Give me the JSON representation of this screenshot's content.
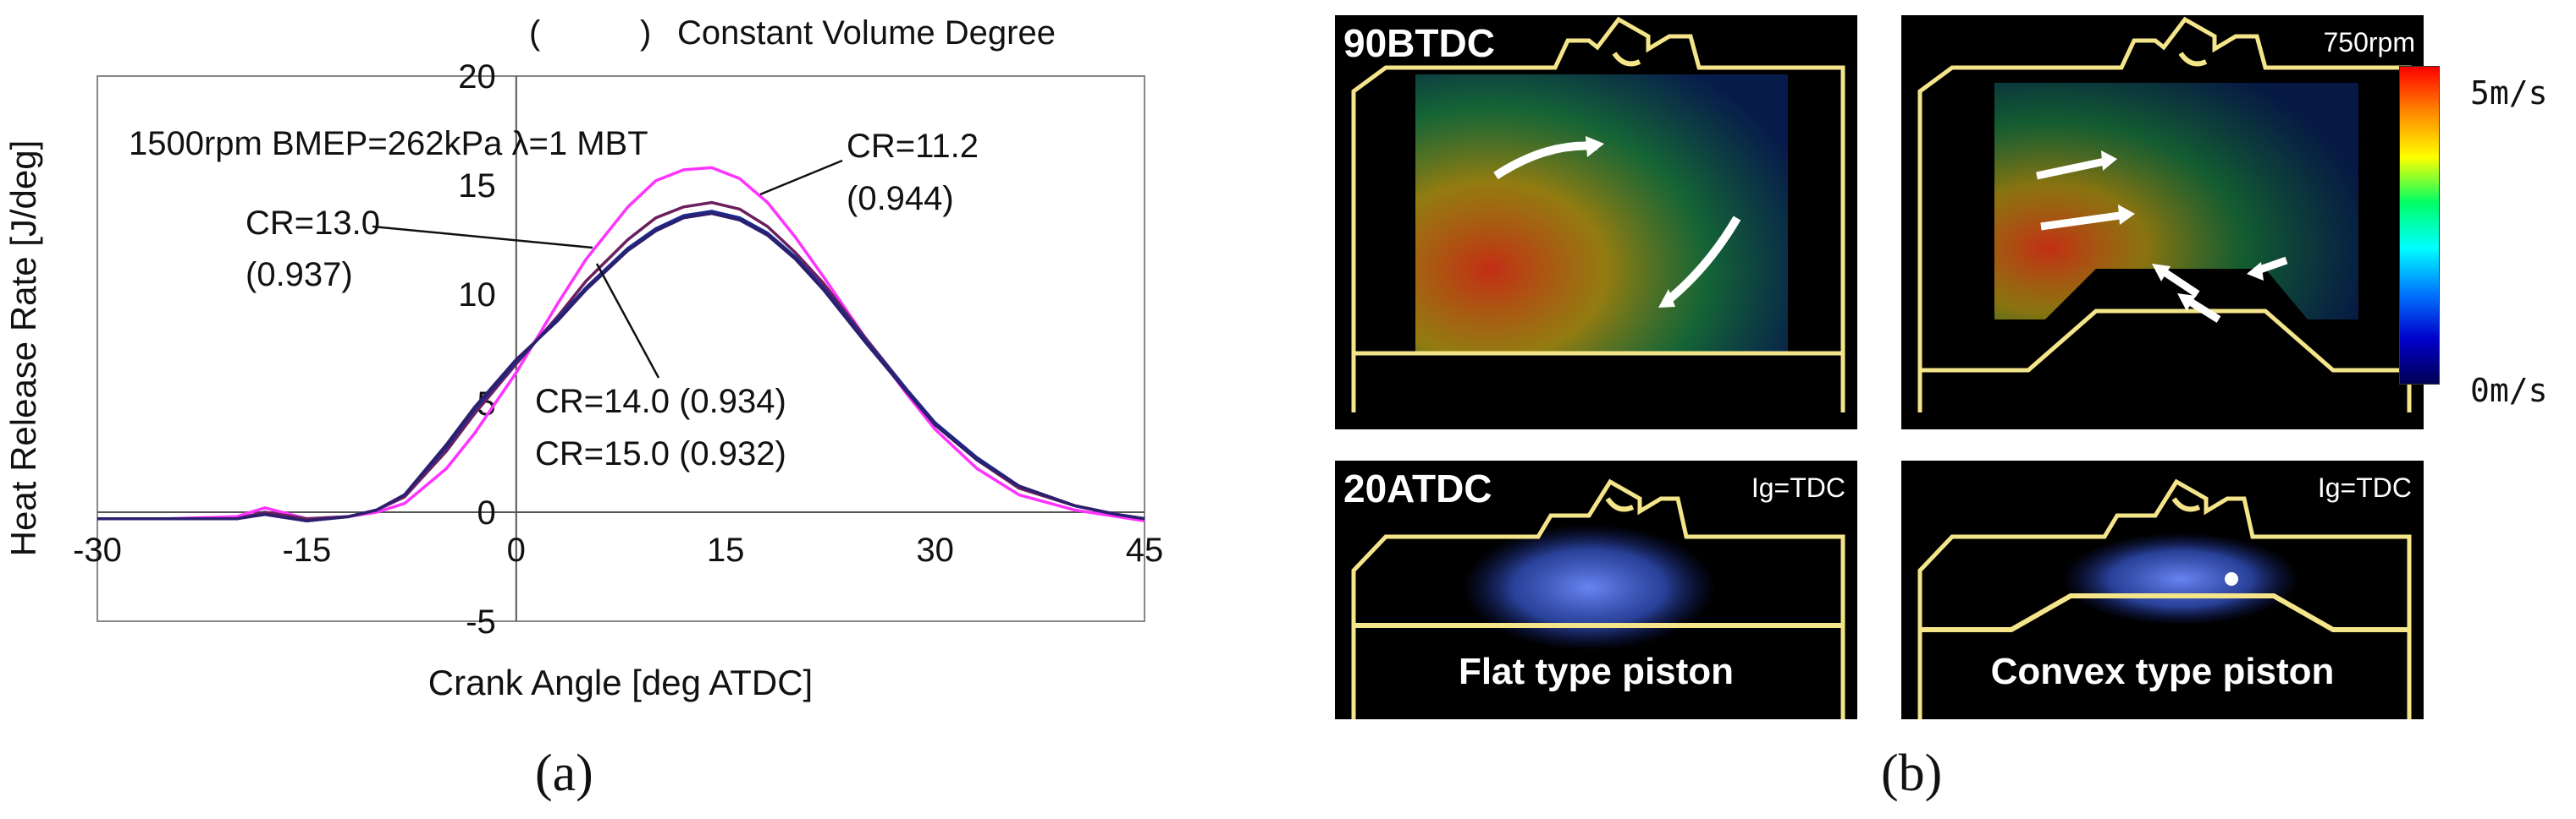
{
  "chart_data": {
    "type": "line",
    "title": "( ) Constant Volume Degree",
    "condition": "1500rpm  BMEP=262kPa λ=1 MBT",
    "xlabel": "Crank Angle [deg ATDC]",
    "ylabel": "Heat Release Rate  [J/deg]",
    "xlim": [
      -30,
      45
    ],
    "ylim": [
      -5,
      20
    ],
    "xticks": [
      "-30",
      "-15",
      "0",
      "15",
      "30",
      "45"
    ],
    "yticks": [
      "-5",
      "0",
      "5",
      "10",
      "15",
      "20"
    ],
    "x": [
      -30,
      -25,
      -20,
      -18,
      -15,
      -12,
      -10,
      -8,
      -5,
      -3,
      0,
      3,
      5,
      8,
      10,
      12,
      14,
      16,
      18,
      20,
      22,
      25,
      28,
      30,
      33,
      36,
      40,
      43,
      45
    ],
    "series": [
      {
        "name": "CR=11.2 (0.944)",
        "color": "#ff33ff",
        "values": [
          -0.3,
          -0.3,
          -0.2,
          0.2,
          -0.3,
          -0.2,
          0.0,
          0.4,
          2.0,
          3.6,
          6.4,
          9.6,
          11.6,
          14.0,
          15.2,
          15.7,
          15.8,
          15.3,
          14.2,
          12.6,
          10.8,
          8.0,
          5.4,
          3.8,
          2.0,
          0.8,
          0.1,
          -0.2,
          -0.4
        ]
      },
      {
        "name": "CR=13.0 (0.937)",
        "color": "#6b1f5e",
        "values": [
          -0.3,
          -0.3,
          -0.3,
          0.0,
          -0.3,
          -0.2,
          0.1,
          0.7,
          2.8,
          4.5,
          6.8,
          9.0,
          10.6,
          12.5,
          13.5,
          14.0,
          14.2,
          13.9,
          13.1,
          11.9,
          10.5,
          8.0,
          5.6,
          4.1,
          2.4,
          1.1,
          0.3,
          -0.1,
          -0.3
        ]
      },
      {
        "name": "CR=14.0 (0.934)",
        "color": "#1a2a8c",
        "values": [
          -0.3,
          -0.3,
          -0.3,
          -0.1,
          -0.4,
          -0.2,
          0.1,
          0.8,
          3.0,
          4.7,
          6.9,
          8.9,
          10.3,
          12.1,
          13.0,
          13.6,
          13.8,
          13.5,
          12.8,
          11.7,
          10.3,
          7.9,
          5.6,
          4.1,
          2.5,
          1.2,
          0.3,
          -0.1,
          -0.3
        ]
      },
      {
        "name": "CR=15.0 (0.932)",
        "color": "#2d1f6e",
        "values": [
          -0.3,
          -0.3,
          -0.3,
          -0.1,
          -0.4,
          -0.2,
          0.1,
          0.8,
          3.1,
          4.8,
          7.0,
          8.8,
          10.2,
          12.0,
          12.9,
          13.5,
          13.7,
          13.4,
          12.7,
          11.6,
          10.2,
          7.8,
          5.5,
          4.0,
          2.4,
          1.2,
          0.3,
          -0.1,
          -0.3
        ]
      }
    ],
    "annotations": {
      "cr112": "CR=11.2",
      "cr112_val": "(0.944)",
      "cr130": "CR=13.0",
      "cr130_val": "(0.937)",
      "cr140": "CR=14.0 (0.934)",
      "cr150": "CR=15.0 (0.932)"
    },
    "grid": false,
    "legend": "none"
  },
  "panel_labels": {
    "a": "(a)",
    "b": "(b)"
  },
  "piv_panels": {
    "top_left_title": "90BTDC",
    "top_right_note": "750rpm",
    "bottom_left_title": "20ATDC",
    "bottom_left_note": "Ig=TDC",
    "bottom_right_note": "Ig=TDC",
    "flat_caption": "Flat type piston",
    "convex_caption": "Convex type piston"
  },
  "colorbar": {
    "max_label": "5m/s",
    "min_label": "0m/s",
    "colors": [
      "#ff0000",
      "#ff8800",
      "#ffff00",
      "#00ff66",
      "#00ffff",
      "#0077ff",
      "#0000cc",
      "#000055"
    ]
  }
}
